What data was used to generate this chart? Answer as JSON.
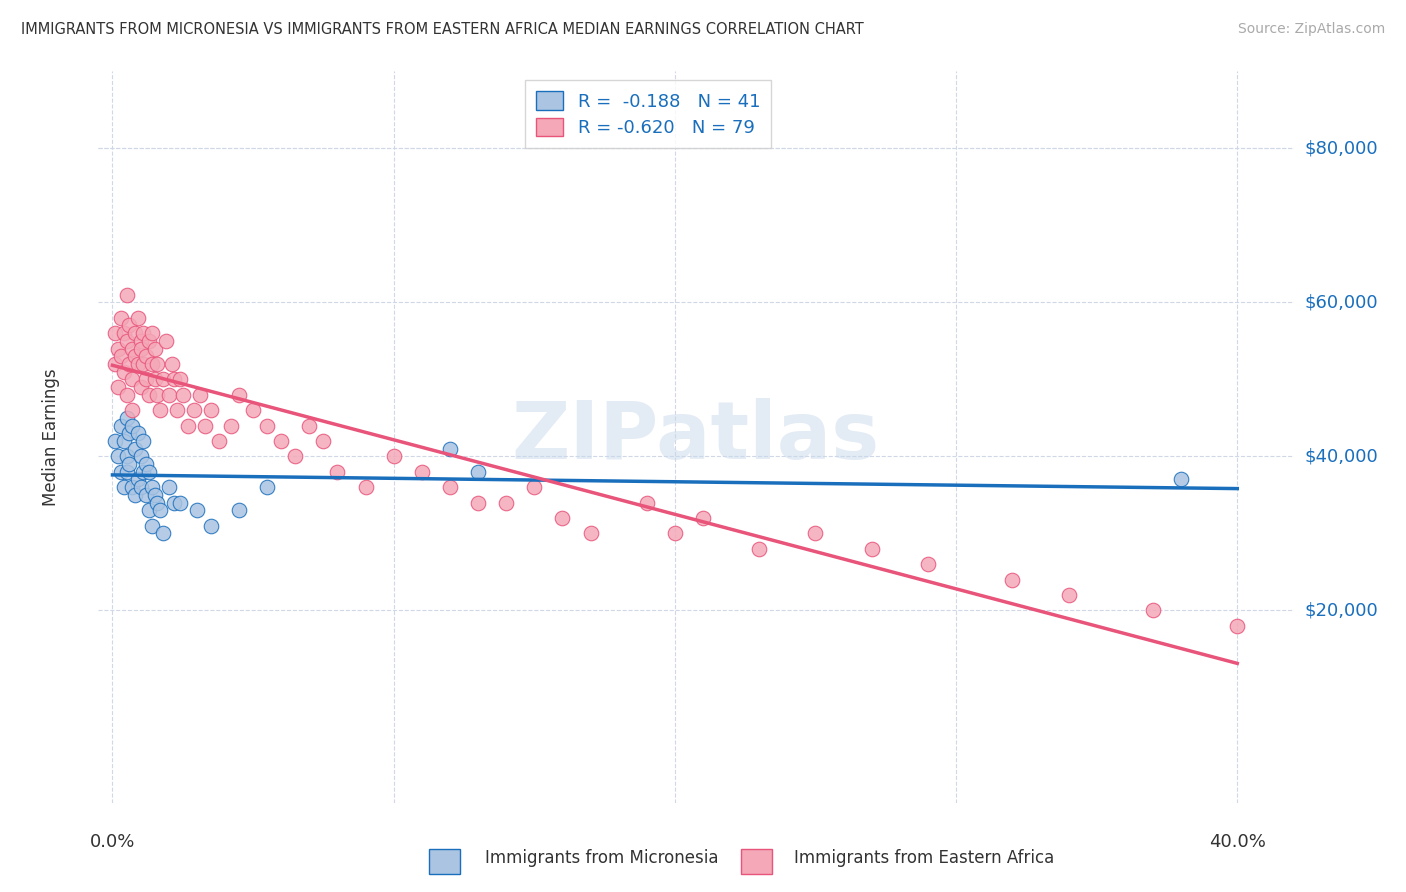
{
  "title": "IMMIGRANTS FROM MICRONESIA VS IMMIGRANTS FROM EASTERN AFRICA MEDIAN EARNINGS CORRELATION CHART",
  "source": "Source: ZipAtlas.com",
  "ylabel": "Median Earnings",
  "watermark": "ZIPatlas",
  "legend_r1": "R =  -0.188",
  "legend_n1": "N = 41",
  "legend_r2": "R = -0.620",
  "legend_n2": "N = 79",
  "color_micro": "#aac4e2",
  "color_africa": "#f4a8b8",
  "line_color_micro": "#1a6fbd",
  "line_color_africa": "#e8547a",
  "ytick_values": [
    20000,
    40000,
    60000,
    80000
  ],
  "ytick_labels": [
    "$20,000",
    "$40,000",
    "$60,000",
    "$80,000"
  ],
  "ylim": [
    -5000,
    90000
  ],
  "xlim": [
    -0.005,
    0.42
  ],
  "micro_x": [
    0.001,
    0.002,
    0.003,
    0.003,
    0.004,
    0.004,
    0.005,
    0.005,
    0.005,
    0.006,
    0.006,
    0.007,
    0.007,
    0.008,
    0.008,
    0.009,
    0.009,
    0.01,
    0.01,
    0.011,
    0.011,
    0.012,
    0.012,
    0.013,
    0.013,
    0.014,
    0.014,
    0.015,
    0.016,
    0.017,
    0.018,
    0.02,
    0.022,
    0.024,
    0.03,
    0.035,
    0.045,
    0.055,
    0.12,
    0.13,
    0.38
  ],
  "micro_y": [
    42000,
    40000,
    44000,
    38000,
    42000,
    36000,
    45000,
    40000,
    38000,
    43000,
    39000,
    44000,
    36000,
    41000,
    35000,
    43000,
    37000,
    40000,
    36000,
    42000,
    38000,
    39000,
    35000,
    38000,
    33000,
    36000,
    31000,
    35000,
    34000,
    33000,
    30000,
    36000,
    34000,
    34000,
    33000,
    31000,
    33000,
    36000,
    41000,
    38000,
    37000
  ],
  "africa_x": [
    0.001,
    0.001,
    0.002,
    0.002,
    0.003,
    0.003,
    0.004,
    0.004,
    0.005,
    0.005,
    0.005,
    0.006,
    0.006,
    0.007,
    0.007,
    0.007,
    0.008,
    0.008,
    0.009,
    0.009,
    0.01,
    0.01,
    0.01,
    0.011,
    0.011,
    0.012,
    0.012,
    0.013,
    0.013,
    0.014,
    0.014,
    0.015,
    0.015,
    0.016,
    0.016,
    0.017,
    0.018,
    0.019,
    0.02,
    0.021,
    0.022,
    0.023,
    0.024,
    0.025,
    0.027,
    0.029,
    0.031,
    0.033,
    0.035,
    0.038,
    0.042,
    0.045,
    0.05,
    0.055,
    0.06,
    0.065,
    0.07,
    0.075,
    0.08,
    0.09,
    0.1,
    0.11,
    0.12,
    0.13,
    0.14,
    0.15,
    0.16,
    0.17,
    0.19,
    0.2,
    0.21,
    0.23,
    0.25,
    0.27,
    0.29,
    0.32,
    0.34,
    0.37,
    0.4
  ],
  "africa_y": [
    52000,
    56000,
    54000,
    49000,
    53000,
    58000,
    56000,
    51000,
    55000,
    48000,
    61000,
    52000,
    57000,
    54000,
    50000,
    46000,
    53000,
    56000,
    52000,
    58000,
    55000,
    49000,
    54000,
    52000,
    56000,
    50000,
    53000,
    48000,
    55000,
    52000,
    56000,
    50000,
    54000,
    48000,
    52000,
    46000,
    50000,
    55000,
    48000,
    52000,
    50000,
    46000,
    50000,
    48000,
    44000,
    46000,
    48000,
    44000,
    46000,
    42000,
    44000,
    48000,
    46000,
    44000,
    42000,
    40000,
    44000,
    42000,
    38000,
    36000,
    40000,
    38000,
    36000,
    34000,
    34000,
    36000,
    32000,
    30000,
    34000,
    30000,
    32000,
    28000,
    30000,
    28000,
    26000,
    24000,
    22000,
    20000,
    18000
  ]
}
